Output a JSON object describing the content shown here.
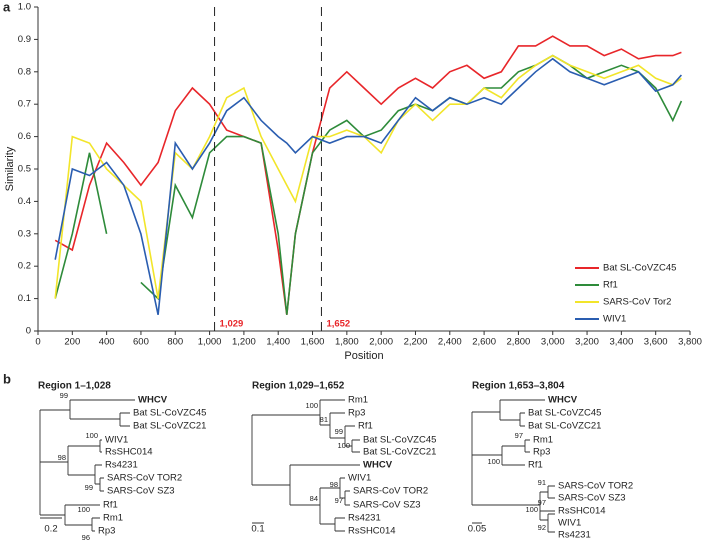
{
  "panels": [
    "a",
    "b"
  ],
  "chart_data": {
    "type": "line",
    "xlabel": "Position",
    "ylabel": "Similarity",
    "x": [
      100,
      200,
      300,
      400,
      500,
      600,
      700,
      800,
      900,
      1000,
      1100,
      1200,
      1300,
      1400,
      1450,
      1500,
      1600,
      1700,
      1800,
      1900,
      2000,
      2100,
      2200,
      2300,
      2400,
      2500,
      2600,
      2700,
      2800,
      2900,
      3000,
      3100,
      3200,
      3300,
      3400,
      3500,
      3600,
      3700,
      3750
    ],
    "series": [
      {
        "name": "Bat SL-CoVZC45",
        "color": "#e8262a",
        "values": [
          0.28,
          0.25,
          0.45,
          0.58,
          0.52,
          0.45,
          0.52,
          0.68,
          0.75,
          0.7,
          0.62,
          0.6,
          0.58,
          0.25,
          0.05,
          0.3,
          0.55,
          0.75,
          0.8,
          0.75,
          0.7,
          0.75,
          0.78,
          0.75,
          0.8,
          0.82,
          0.78,
          0.8,
          0.88,
          0.88,
          0.91,
          0.88,
          0.88,
          0.85,
          0.87,
          0.84,
          0.85,
          0.85,
          0.86
        ]
      },
      {
        "name": "Rf1",
        "color": "#2e8b3a",
        "values": [
          0.1,
          0.3,
          0.55,
          0.3,
          null,
          0.15,
          0.1,
          0.45,
          0.35,
          0.55,
          0.6,
          0.6,
          0.58,
          0.3,
          0.05,
          0.3,
          0.55,
          0.62,
          0.65,
          0.6,
          0.62,
          0.68,
          0.7,
          0.68,
          0.72,
          0.7,
          0.75,
          0.75,
          0.8,
          0.82,
          0.85,
          0.82,
          0.78,
          0.8,
          0.82,
          0.8,
          0.75,
          0.65,
          0.71
        ]
      },
      {
        "name": "SARS-CoV Tor2",
        "color": "#f2e52a",
        "values": [
          0.1,
          0.6,
          0.58,
          0.5,
          0.45,
          0.4,
          0.1,
          0.55,
          0.5,
          0.6,
          0.72,
          0.75,
          0.6,
          0.5,
          0.45,
          0.4,
          0.6,
          0.6,
          0.62,
          0.6,
          0.55,
          0.65,
          0.7,
          0.65,
          0.7,
          0.7,
          0.75,
          0.72,
          0.78,
          0.82,
          0.85,
          0.82,
          0.8,
          0.78,
          0.8,
          0.82,
          0.78,
          0.76,
          0.78
        ]
      },
      {
        "name": "WIV1",
        "color": "#2a5db0",
        "values": [
          0.22,
          0.5,
          0.48,
          0.52,
          0.45,
          0.3,
          0.05,
          0.58,
          0.5,
          0.58,
          0.68,
          0.72,
          0.65,
          0.6,
          0.58,
          0.55,
          0.6,
          0.58,
          0.6,
          0.6,
          0.58,
          0.65,
          0.72,
          0.68,
          0.72,
          0.7,
          0.72,
          0.7,
          0.75,
          0.8,
          0.84,
          0.8,
          0.78,
          0.76,
          0.78,
          0.8,
          0.74,
          0.76,
          0.79
        ]
      }
    ],
    "xlim": [
      0,
      3800
    ],
    "xticks": [
      0,
      200,
      400,
      600,
      800,
      {
        "value": 1000,
        "label": "1,000"
      },
      {
        "value": 1200,
        "label": "1,200"
      },
      {
        "value": 1400,
        "label": "1,400"
      },
      {
        "value": 1600,
        "label": "1,600"
      },
      {
        "value": 1800,
        "label": "1,800"
      },
      {
        "value": 2000,
        "label": "2,000"
      },
      {
        "value": 2200,
        "label": "2,200"
      },
      {
        "value": 2400,
        "label": "2,400"
      },
      {
        "value": 2600,
        "label": "2,600"
      },
      {
        "value": 2800,
        "label": "2,800"
      },
      {
        "value": 3000,
        "label": "3,000"
      },
      {
        "value": 3200,
        "label": "3,200"
      },
      {
        "value": 3400,
        "label": "3,400"
      },
      {
        "value": 3600,
        "label": "3,600"
      },
      {
        "value": 3800,
        "label": "3,800"
      }
    ],
    "ylim": [
      0,
      1
    ],
    "yticks": [
      0,
      0.1,
      0.2,
      0.3,
      0.4,
      0.5,
      0.6,
      0.7,
      0.8,
      0.9,
      {
        "value": 1,
        "label": "1.0"
      }
    ],
    "breakpoints": [
      {
        "value": 1029,
        "label": "1,029"
      },
      {
        "value": 1652,
        "label": "1,652"
      }
    ],
    "legend": "lower right",
    "grid": false
  },
  "trees": [
    {
      "title": "Region 1–1,028",
      "leaves": [
        "WHCV",
        "Bat SL-CoVZC45",
        "Bat SL-CoVZC21",
        "WIV1",
        "RsSHC014",
        "Rs4231",
        "SARS-CoV TOR2",
        "SARS-CoV SZ3",
        "Rf1",
        "Rm1",
        "Rp3"
      ],
      "bootstraps": [
        99,
        100,
        98,
        99,
        100,
        96
      ],
      "scale": 0.2
    },
    {
      "title": "Region 1,029–1,652",
      "leaves": [
        "Rm1",
        "Rp3",
        "Rf1",
        "Bat SL-CoVZC45",
        "Bat SL-CoVZC21",
        "WHCV",
        "WIV1",
        "SARS-CoV TOR2",
        "SARS-CoV SZ3",
        "Rs4231",
        "RsSHC014"
      ],
      "bootstraps": [
        100,
        81,
        99,
        100,
        98,
        97,
        84
      ],
      "scale": 0.1
    },
    {
      "title": "Region 1,653–3,804",
      "leaves": [
        "WHCV",
        "Bat SL-CoVZC45",
        "Bat SL-CoVZC21",
        "Rm1",
        "Rp3",
        "Rf1",
        "SARS-CoV TOR2",
        "SARS-CoV SZ3",
        "RsSHC014",
        "WIV1",
        "Rs4231"
      ],
      "bootstraps": [
        97,
        100,
        91,
        97,
        100,
        92
      ],
      "scale": 0.05
    }
  ]
}
